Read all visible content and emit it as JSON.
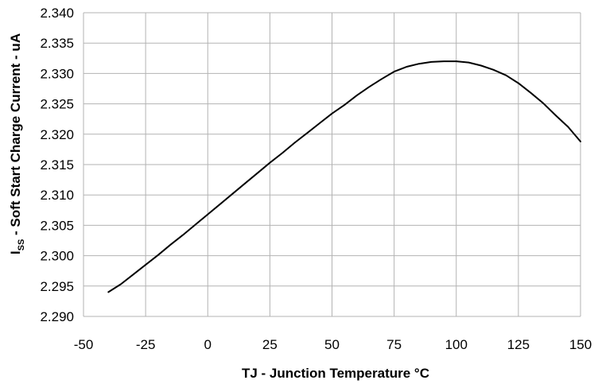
{
  "chart_data": {
    "type": "line",
    "xlabel": "TJ -    Junction Temperature °C",
    "ylabel_main": "I",
    "ylabel_sub": "SS",
    "ylabel_rest": "  -  Soft Start Charge Current - uA",
    "xlim": [
      -50,
      150
    ],
    "ylim": [
      2.29,
      2.34
    ],
    "x_ticks": [
      "-50",
      "-25",
      "0",
      "25",
      "50",
      "75",
      "100",
      "125",
      "150"
    ],
    "y_ticks": [
      "2.290",
      "2.295",
      "2.300",
      "2.305",
      "2.310",
      "2.315",
      "2.320",
      "2.325",
      "2.330",
      "2.335",
      "2.340"
    ],
    "grid": true,
    "line_color": "#000000",
    "grid_color": "#b3b3b3",
    "series": [
      {
        "x": [
          -40,
          -35,
          -30,
          -25,
          -20,
          -15,
          -10,
          -5,
          0,
          5,
          10,
          15,
          20,
          25,
          30,
          35,
          40,
          45,
          50,
          55,
          60,
          65,
          70,
          75,
          80,
          85,
          90,
          95,
          100,
          105,
          110,
          115,
          120,
          125,
          130,
          135,
          140,
          145,
          150
        ],
        "y": [
          2.294,
          2.2953,
          2.2969,
          2.2985,
          2.3001,
          2.3018,
          2.3034,
          2.3051,
          2.3068,
          2.3085,
          2.3102,
          2.3119,
          2.3136,
          2.3153,
          2.3169,
          2.3186,
          2.3202,
          2.3218,
          2.3234,
          2.3248,
          2.3264,
          2.3278,
          2.3291,
          2.3303,
          2.3311,
          2.3316,
          2.3319,
          2.332,
          2.332,
          2.3318,
          2.3313,
          2.3306,
          2.3297,
          2.3284,
          2.3268,
          2.3251,
          2.3231,
          2.3212,
          2.3188
        ]
      }
    ]
  }
}
